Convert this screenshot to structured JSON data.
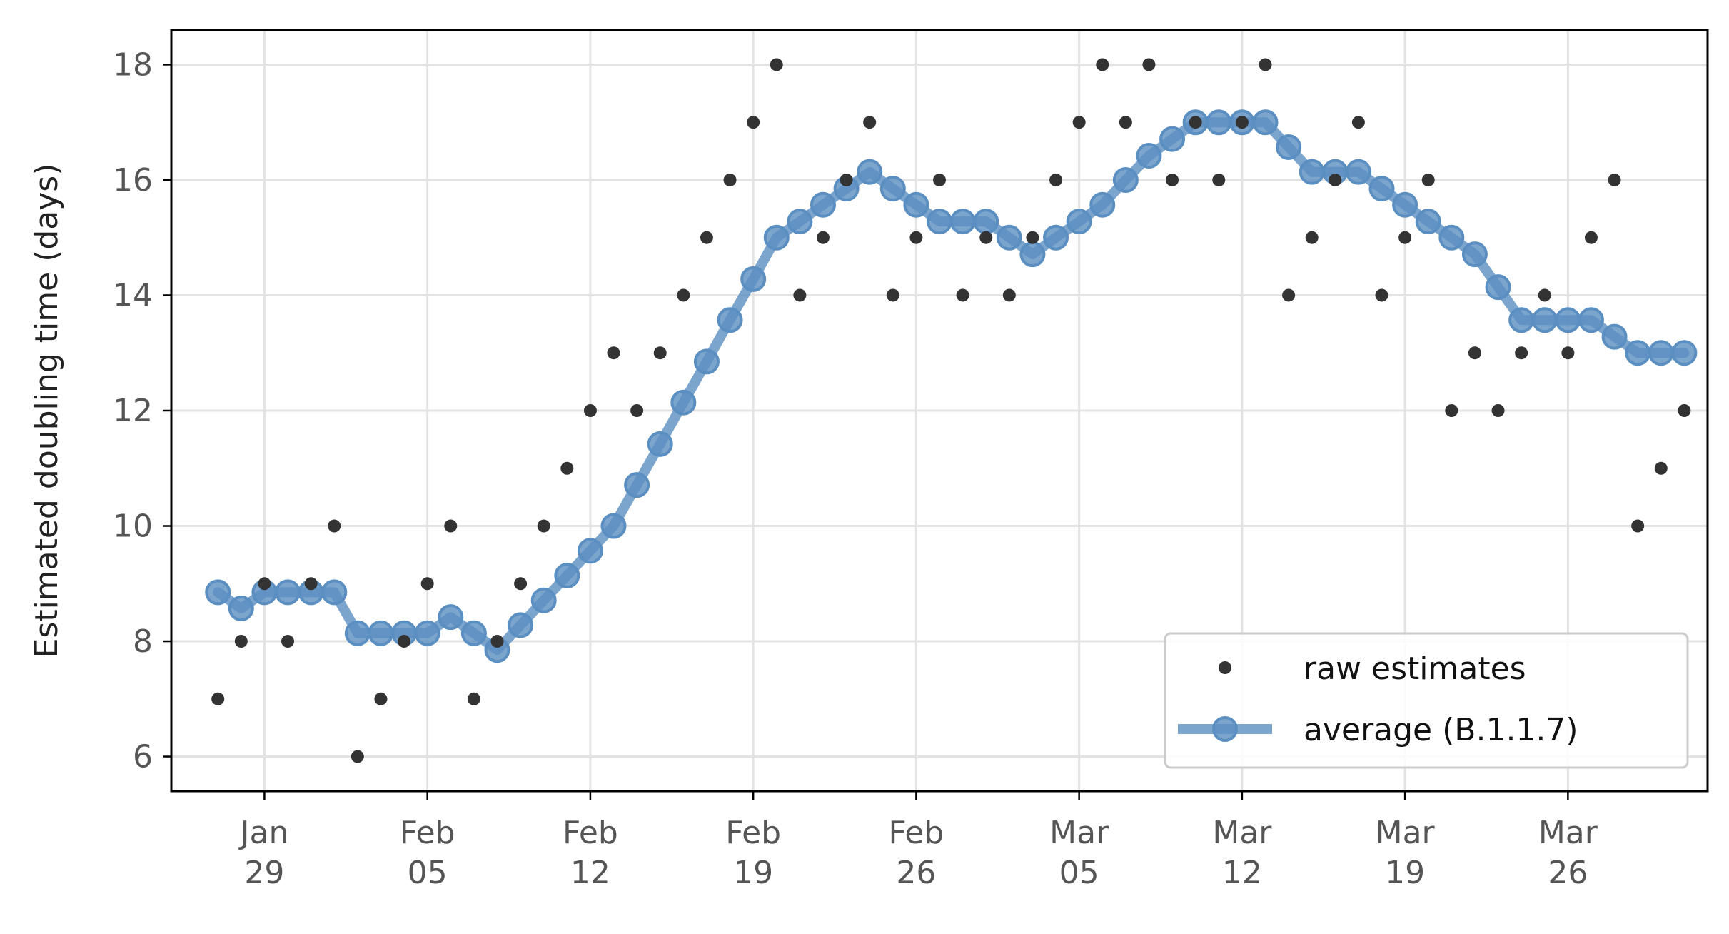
{
  "chart_data": {
    "type": "line",
    "ylabel": "Estimated doubling time (days)",
    "xlabel": "",
    "ylim": [
      5.4,
      18.6
    ],
    "xlim": [
      "2021-01-25",
      "2021-04-01"
    ],
    "x_ticks": [
      "2021-01-29",
      "2021-02-05",
      "2021-02-12",
      "2021-02-19",
      "2021-02-26",
      "2021-03-05",
      "2021-03-12",
      "2021-03-19",
      "2021-03-26"
    ],
    "x_tick_labels": [
      [
        "Jan",
        "29"
      ],
      [
        "Feb",
        "05"
      ],
      [
        "Feb",
        "12"
      ],
      [
        "Feb",
        "19"
      ],
      [
        "Feb",
        "26"
      ],
      [
        "Mar",
        "05"
      ],
      [
        "Mar",
        "12"
      ],
      [
        "Mar",
        "19"
      ],
      [
        "Mar",
        "26"
      ]
    ],
    "y_ticks": [
      6,
      8,
      10,
      12,
      14,
      16,
      18
    ],
    "grid": true,
    "legend_position": "bottom-right",
    "colors": {
      "raw": "#333333",
      "average": "#5b8fc2"
    },
    "x": [
      "2021-01-27",
      "2021-01-28",
      "2021-01-29",
      "2021-01-30",
      "2021-01-31",
      "2021-02-01",
      "2021-02-02",
      "2021-02-03",
      "2021-02-04",
      "2021-02-05",
      "2021-02-06",
      "2021-02-07",
      "2021-02-08",
      "2021-02-09",
      "2021-02-10",
      "2021-02-11",
      "2021-02-12",
      "2021-02-13",
      "2021-02-14",
      "2021-02-15",
      "2021-02-16",
      "2021-02-17",
      "2021-02-18",
      "2021-02-19",
      "2021-02-20",
      "2021-02-21",
      "2021-02-22",
      "2021-02-23",
      "2021-02-24",
      "2021-02-25",
      "2021-02-26",
      "2021-02-27",
      "2021-02-28",
      "2021-03-01",
      "2021-03-02",
      "2021-03-03",
      "2021-03-04",
      "2021-03-05",
      "2021-03-06",
      "2021-03-07",
      "2021-03-08",
      "2021-03-09",
      "2021-03-10",
      "2021-03-11",
      "2021-03-12",
      "2021-03-13",
      "2021-03-14",
      "2021-03-15",
      "2021-03-16",
      "2021-03-17",
      "2021-03-18",
      "2021-03-19",
      "2021-03-20",
      "2021-03-21",
      "2021-03-22",
      "2021-03-23",
      "2021-03-24",
      "2021-03-25",
      "2021-03-26",
      "2021-03-27",
      "2021-03-28",
      "2021-03-29",
      "2021-03-30",
      "2021-03-31"
    ],
    "series": [
      {
        "name": "raw estimates",
        "style": "points",
        "values": [
          7,
          8,
          9,
          8,
          9,
          10,
          6,
          7,
          8,
          9,
          10,
          7,
          8,
          9,
          10,
          11,
          12,
          13,
          12,
          13,
          14,
          15,
          16,
          17,
          18,
          14,
          15,
          16,
          17,
          14,
          15,
          16,
          14,
          15,
          14,
          15,
          16,
          17,
          18,
          17,
          18,
          16,
          17,
          16,
          17,
          18,
          14,
          15,
          16,
          17,
          14,
          15,
          16,
          12,
          13,
          12,
          13,
          14,
          13,
          15,
          16,
          10,
          11,
          12
        ]
      },
      {
        "name": "average (B.1.1.7)",
        "style": "line-markers",
        "values": [
          8.85,
          8.57,
          8.85,
          8.85,
          8.85,
          8.85,
          8.14,
          8.14,
          8.14,
          8.14,
          8.42,
          8.14,
          7.85,
          8.28,
          8.71,
          9.14,
          9.57,
          10.0,
          10.71,
          11.42,
          12.14,
          12.85,
          13.57,
          14.28,
          15.0,
          15.28,
          15.57,
          15.85,
          16.14,
          15.85,
          15.57,
          15.28,
          15.28,
          15.28,
          15.0,
          14.71,
          15.0,
          15.28,
          15.57,
          16.0,
          16.42,
          16.71,
          17.0,
          17.0,
          17.0,
          17.0,
          16.57,
          16.14,
          16.14,
          16.14,
          15.85,
          15.57,
          15.28,
          15.0,
          14.71,
          14.14,
          13.57,
          13.57,
          13.57,
          13.57,
          13.28,
          13.0,
          13.0,
          13.0
        ]
      }
    ]
  }
}
